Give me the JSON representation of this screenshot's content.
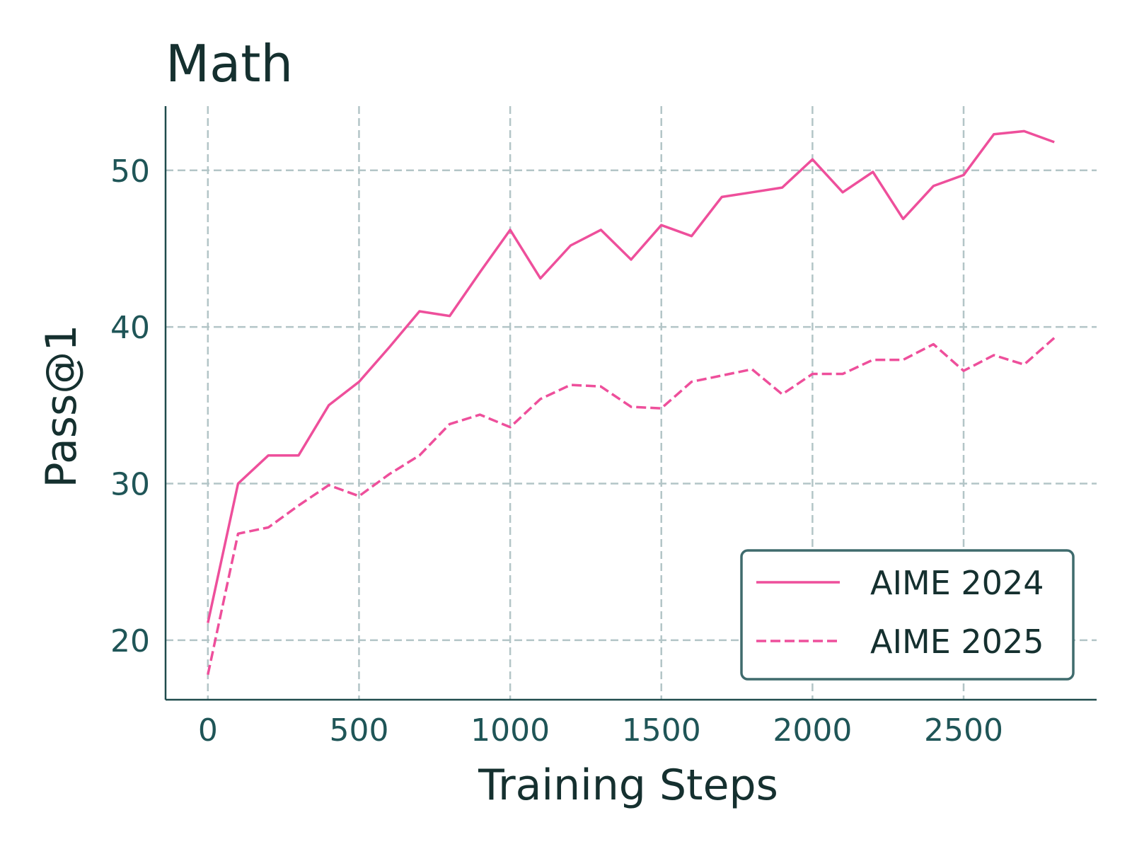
{
  "colors": {
    "series": "#ee4f9b",
    "axis": "#1f4b4c",
    "grid": "#b3c5c7",
    "legend_border": "#3f6b6d"
  },
  "chart_data": {
    "type": "line",
    "title": "Math",
    "xlabel": "Training Steps",
    "ylabel": "Pass@1",
    "xlim": [
      -140,
      2940
    ],
    "ylim": [
      16.2,
      54.1
    ],
    "xticks": [
      0,
      500,
      1000,
      1500,
      2000,
      2500
    ],
    "xtick_labels": [
      "0",
      "500",
      "1000",
      "1500",
      "2000",
      "2500"
    ],
    "yticks": [
      20,
      30,
      40,
      50
    ],
    "ytick_labels": [
      "20",
      "30",
      "40",
      "50"
    ],
    "grid": true,
    "legend_position": "lower-right",
    "series": [
      {
        "name": "AIME 2024",
        "style": "solid",
        "x": [
          0,
          100,
          200,
          300,
          400,
          500,
          600,
          700,
          800,
          900,
          1000,
          1100,
          1200,
          1300,
          1400,
          1500,
          1600,
          1700,
          1800,
          1900,
          2000,
          2100,
          2200,
          2300,
          2400,
          2500,
          2600,
          2700,
          2800
        ],
        "y": [
          21.1,
          30.0,
          31.8,
          31.8,
          35.0,
          36.5,
          38.7,
          41.0,
          40.7,
          43.5,
          46.2,
          43.1,
          45.2,
          46.2,
          44.3,
          46.5,
          45.8,
          48.3,
          48.6,
          48.9,
          50.7,
          48.6,
          49.9,
          46.9,
          49.0,
          49.7,
          52.3,
          52.5,
          51.8
        ]
      },
      {
        "name": "AIME 2025",
        "style": "dashed",
        "x": [
          0,
          100,
          200,
          300,
          400,
          500,
          600,
          700,
          800,
          900,
          1000,
          1100,
          1200,
          1300,
          1400,
          1500,
          1600,
          1700,
          1800,
          1900,
          2000,
          2100,
          2200,
          2300,
          2400,
          2500,
          2600,
          2700,
          2800
        ],
        "y": [
          17.8,
          26.8,
          27.2,
          28.6,
          29.9,
          29.2,
          30.6,
          31.8,
          33.8,
          34.4,
          33.6,
          35.4,
          36.3,
          36.2,
          34.9,
          34.8,
          36.5,
          36.9,
          37.3,
          35.7,
          37.0,
          37.0,
          37.9,
          37.9,
          38.9,
          37.2,
          38.2,
          37.6,
          39.3
        ]
      }
    ]
  }
}
